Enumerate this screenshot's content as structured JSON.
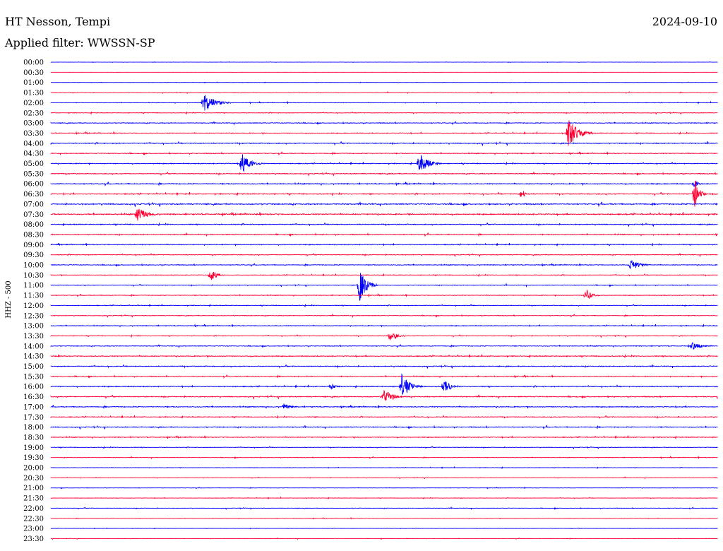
{
  "header": {
    "station": "HT Nesson, Tempi",
    "date": "2024-09-10",
    "filter": "Applied filter: WWSSN-SP"
  },
  "chart_data": {
    "type": "line",
    "title": "HT Nesson, Tempi",
    "date": "2024-09-10",
    "filter_label": "Applied filter: WWSSN-SP",
    "ylabel": "HHZ - 500",
    "xlabel": "",
    "row_interval_minutes": 30,
    "row_labels": [
      "00:00",
      "00:30",
      "01:00",
      "01:30",
      "02:00",
      "02:30",
      "03:00",
      "03:30",
      "04:00",
      "04:30",
      "05:00",
      "05:30",
      "06:00",
      "06:30",
      "07:00",
      "07:30",
      "08:00",
      "08:30",
      "09:00",
      "09:30",
      "10:00",
      "10:30",
      "11:00",
      "11:30",
      "12:00",
      "12:30",
      "13:00",
      "13:30",
      "14:00",
      "14:30",
      "15:00",
      "15:30",
      "16:00",
      "16:30",
      "17:00",
      "17:30",
      "18:00",
      "18:30",
      "19:00",
      "19:30",
      "20:00",
      "20:30",
      "21:00",
      "21:30",
      "22:00",
      "22:30",
      "23:00",
      "23:30"
    ],
    "colors": [
      "#0000ff",
      "#ff0033"
    ],
    "row_noise": [
      0.15,
      0.05,
      0.15,
      0.25,
      0.3,
      0.35,
      0.45,
      0.45,
      0.6,
      0.5,
      0.5,
      0.55,
      0.6,
      0.6,
      0.7,
      0.7,
      0.55,
      0.55,
      0.5,
      0.45,
      0.45,
      0.4,
      0.4,
      0.4,
      0.4,
      0.4,
      0.45,
      0.4,
      0.45,
      0.55,
      0.55,
      0.5,
      0.55,
      0.6,
      0.55,
      0.5,
      0.55,
      0.5,
      0.35,
      0.3,
      0.25,
      0.25,
      0.2,
      0.25,
      0.3,
      0.2,
      0.15,
      0.2
    ],
    "events": [
      {
        "row": 4,
        "minute": 6.9,
        "amplitude": 14,
        "duration_min": 1.2
      },
      {
        "row": 7,
        "minute": 23.3,
        "amplitude": 20,
        "duration_min": 1.1
      },
      {
        "row": 10,
        "minute": 8.6,
        "amplitude": 14,
        "duration_min": 1.0
      },
      {
        "row": 10,
        "minute": 16.6,
        "amplitude": 14,
        "duration_min": 1.0
      },
      {
        "row": 12,
        "minute": 29.0,
        "amplitude": 6,
        "duration_min": 0.4
      },
      {
        "row": 13,
        "minute": 21.2,
        "amplitude": 7,
        "duration_min": 0.4
      },
      {
        "row": 13,
        "minute": 29.0,
        "amplitude": 22,
        "duration_min": 0.5
      },
      {
        "row": 15,
        "minute": 3.9,
        "amplitude": 10,
        "duration_min": 1.1
      },
      {
        "row": 20,
        "minute": 26.1,
        "amplitude": 8,
        "duration_min": 1.0
      },
      {
        "row": 21,
        "minute": 7.2,
        "amplitude": 9,
        "duration_min": 0.6
      },
      {
        "row": 22,
        "minute": 13.9,
        "amplitude": 24,
        "duration_min": 0.8
      },
      {
        "row": 23,
        "minute": 24.1,
        "amplitude": 9,
        "duration_min": 0.6
      },
      {
        "row": 27,
        "minute": 15.3,
        "amplitude": 9,
        "duration_min": 0.6
      },
      {
        "row": 28,
        "minute": 28.9,
        "amplitude": 6,
        "duration_min": 0.8
      },
      {
        "row": 32,
        "minute": 12.6,
        "amplitude": 5,
        "duration_min": 0.5
      },
      {
        "row": 32,
        "minute": 15.8,
        "amplitude": 18,
        "duration_min": 0.9
      },
      {
        "row": 32,
        "minute": 17.7,
        "amplitude": 12,
        "duration_min": 0.6
      },
      {
        "row": 33,
        "minute": 15.0,
        "amplitude": 10,
        "duration_min": 1.1
      },
      {
        "row": 34,
        "minute": 10.5,
        "amplitude": 5,
        "duration_min": 0.8
      }
    ]
  }
}
